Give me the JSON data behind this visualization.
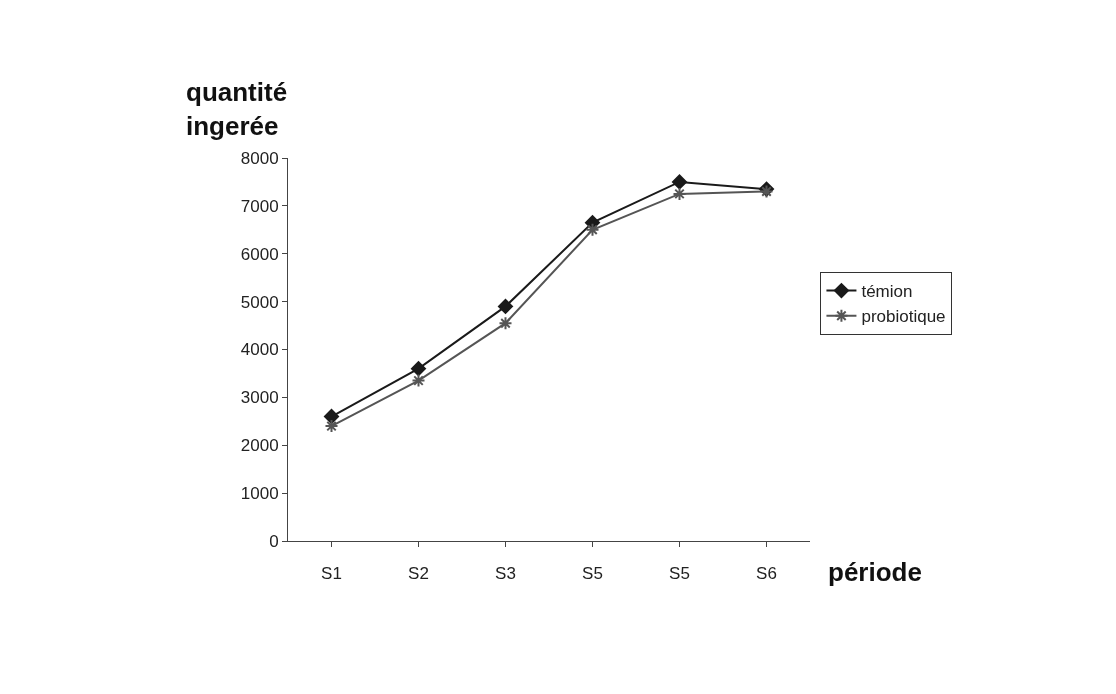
{
  "chart_data": {
    "type": "line",
    "xlabel": "période",
    "ylabel": "quantité ingerée",
    "categories": [
      "S1",
      "S2",
      "S3",
      "S5",
      "S5",
      "S6"
    ],
    "series": [
      {
        "name": "témion",
        "color": "#1a1a1a",
        "marker": "diamond",
        "values": [
          2600,
          3600,
          4900,
          6650,
          7500,
          7350
        ]
      },
      {
        "name": "probiotique",
        "color": "#555555",
        "marker": "cross",
        "values": [
          2400,
          3350,
          4550,
          6500,
          7250,
          7300
        ]
      }
    ],
    "ylim": [
      0,
      8000
    ],
    "yticks": [
      0,
      1000,
      2000,
      3000,
      4000,
      5000,
      6000,
      7000,
      8000
    ],
    "grid": false,
    "legend": "right",
    "line_style": "solid"
  }
}
